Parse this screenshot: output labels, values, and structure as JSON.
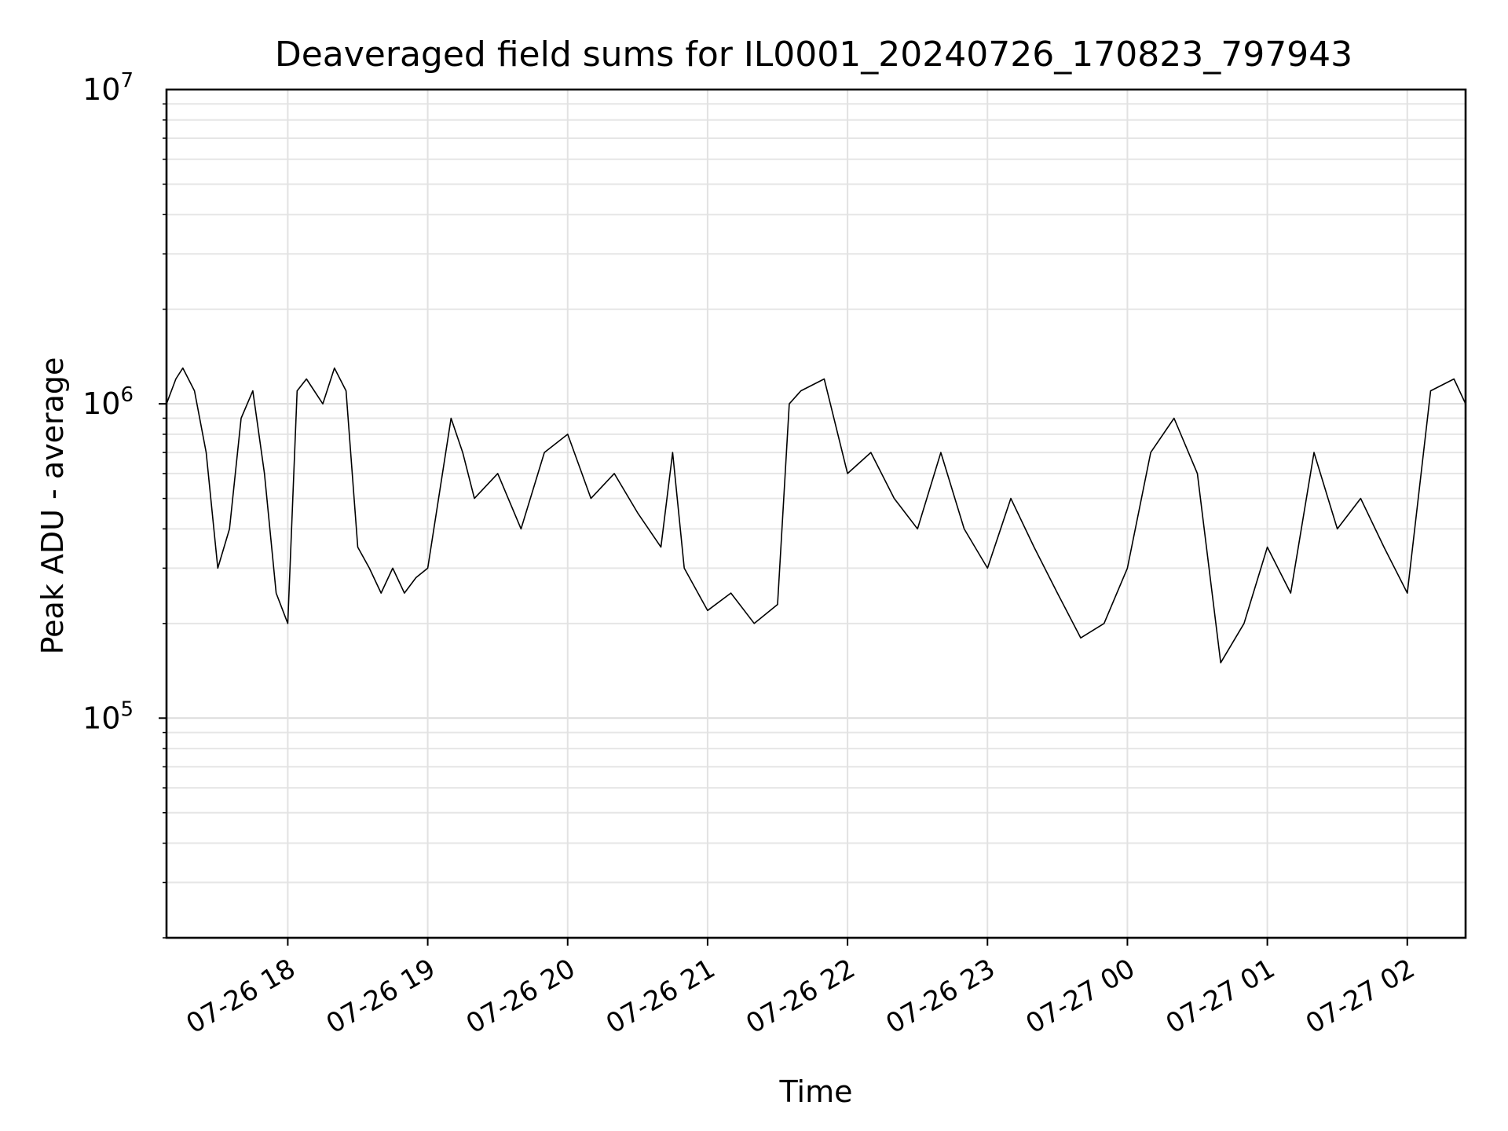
{
  "chart_data": {
    "type": "line",
    "title": "Deaveraged field sums for IL0001_20240726_170823_797943",
    "xlabel": "Time",
    "ylabel": "Peak ADU - average",
    "yscale": "log",
    "ylim": [
      20000,
      10000000
    ],
    "xlim": [
      "2024-07-26 17:08",
      "2024-07-27 02:25"
    ],
    "grid": true,
    "line_color": "#000000",
    "x_ticks": [
      {
        "label": "07-26 18",
        "time": "2024-07-26 18:00"
      },
      {
        "label": "07-26 19",
        "time": "2024-07-26 19:00"
      },
      {
        "label": "07-26 20",
        "time": "2024-07-26 20:00"
      },
      {
        "label": "07-26 21",
        "time": "2024-07-26 21:00"
      },
      {
        "label": "07-26 22",
        "time": "2024-07-26 22:00"
      },
      {
        "label": "07-26 23",
        "time": "2024-07-26 23:00"
      },
      {
        "label": "07-27 00",
        "time": "2024-07-27 00:00"
      },
      {
        "label": "07-27 01",
        "time": "2024-07-27 01:00"
      },
      {
        "label": "07-27 02",
        "time": "2024-07-27 02:00"
      }
    ],
    "y_ticks": [
      {
        "base": "10",
        "exp": "5",
        "value": 100000
      },
      {
        "base": "10",
        "exp": "6",
        "value": 1000000
      },
      {
        "base": "10",
        "exp": "7",
        "value": 10000000
      }
    ],
    "series": [
      {
        "x": [
          "2024-07-26 17:08",
          "2024-07-26 17:12",
          "2024-07-26 17:15",
          "2024-07-26 17:20",
          "2024-07-26 17:25",
          "2024-07-26 17:30",
          "2024-07-26 17:35",
          "2024-07-26 17:40",
          "2024-07-26 17:45",
          "2024-07-26 17:50",
          "2024-07-26 17:55",
          "2024-07-26 18:00",
          "2024-07-26 18:04",
          "2024-07-26 18:08",
          "2024-07-26 18:15",
          "2024-07-26 18:20",
          "2024-07-26 18:25",
          "2024-07-26 18:30",
          "2024-07-26 18:35",
          "2024-07-26 18:40",
          "2024-07-26 18:45",
          "2024-07-26 18:50",
          "2024-07-26 18:55",
          "2024-07-26 19:00",
          "2024-07-26 19:10",
          "2024-07-26 19:15",
          "2024-07-26 19:20",
          "2024-07-26 19:30",
          "2024-07-26 19:40",
          "2024-07-26 19:50",
          "2024-07-26 20:00",
          "2024-07-26 20:10",
          "2024-07-26 20:20",
          "2024-07-26 20:30",
          "2024-07-26 20:40",
          "2024-07-26 20:45",
          "2024-07-26 20:50",
          "2024-07-26 21:00",
          "2024-07-26 21:10",
          "2024-07-26 21:20",
          "2024-07-26 21:30",
          "2024-07-26 21:35",
          "2024-07-26 21:40",
          "2024-07-26 21:50",
          "2024-07-26 22:00",
          "2024-07-26 22:10",
          "2024-07-26 22:20",
          "2024-07-26 22:30",
          "2024-07-26 22:40",
          "2024-07-26 22:50",
          "2024-07-26 23:00",
          "2024-07-26 23:10",
          "2024-07-26 23:20",
          "2024-07-26 23:30",
          "2024-07-26 23:40",
          "2024-07-26 23:50",
          "2024-07-27 00:00",
          "2024-07-27 00:10",
          "2024-07-27 00:20",
          "2024-07-27 00:30",
          "2024-07-27 00:40",
          "2024-07-27 00:50",
          "2024-07-27 01:00",
          "2024-07-27 01:10",
          "2024-07-27 01:20",
          "2024-07-27 01:30",
          "2024-07-27 01:40",
          "2024-07-27 01:50",
          "2024-07-27 02:00",
          "2024-07-27 02:10",
          "2024-07-27 02:20",
          "2024-07-27 02:25"
        ],
        "y": [
          1000000,
          1200000,
          1300000,
          1100000,
          700000,
          300000,
          400000,
          900000,
          1100000,
          600000,
          250000,
          200000,
          1100000,
          1200000,
          1000000,
          1300000,
          1100000,
          350000,
          300000,
          250000,
          300000,
          250000,
          280000,
          300000,
          900000,
          700000,
          500000,
          600000,
          400000,
          700000,
          800000,
          500000,
          600000,
          450000,
          350000,
          700000,
          300000,
          220000,
          250000,
          200000,
          230000,
          1000000,
          1100000,
          1200000,
          600000,
          700000,
          500000,
          400000,
          700000,
          400000,
          300000,
          500000,
          350000,
          250000,
          180000,
          200000,
          300000,
          700000,
          900000,
          600000,
          150000,
          200000,
          350000,
          250000,
          700000,
          400000,
          500000,
          350000,
          250000,
          1100000,
          1200000,
          1000000
        ]
      }
    ]
  }
}
